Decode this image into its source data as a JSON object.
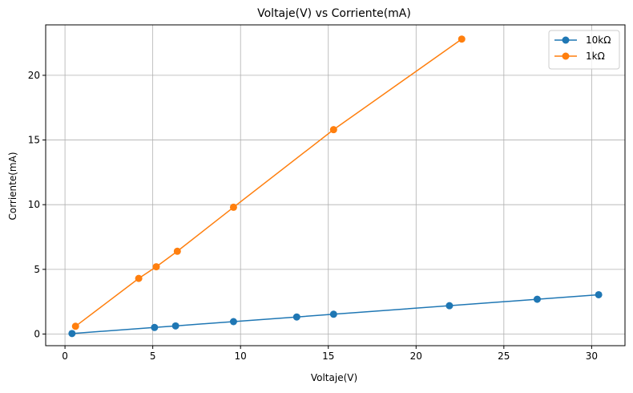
{
  "chart_data": {
    "type": "line",
    "title": "Voltaje(V) vs Corriente(mA)",
    "xlabel": "Voltaje(V)",
    "ylabel": "Corriente(mA)",
    "xlim": [
      -1.1,
      31.9
    ],
    "ylim": [
      -0.9,
      23.9
    ],
    "xticks": [
      0,
      5,
      10,
      15,
      20,
      25,
      30
    ],
    "yticks": [
      0,
      5,
      10,
      15,
      20
    ],
    "grid": true,
    "legend_position": "top-right",
    "series": [
      {
        "name": "10kΩ",
        "color": "#1f77b4",
        "x": [
          0.4,
          5.1,
          6.3,
          9.6,
          13.2,
          15.3,
          21.9,
          26.9,
          30.4
        ],
        "y": [
          0.04,
          0.51,
          0.63,
          0.96,
          1.32,
          1.53,
          2.19,
          2.69,
          3.04
        ]
      },
      {
        "name": "1kΩ",
        "color": "#ff7f0e",
        "x": [
          0.6,
          4.2,
          5.2,
          6.4,
          9.6,
          15.3,
          22.6
        ],
        "y": [
          0.6,
          4.3,
          5.2,
          6.4,
          9.8,
          15.8,
          22.8
        ]
      }
    ]
  }
}
